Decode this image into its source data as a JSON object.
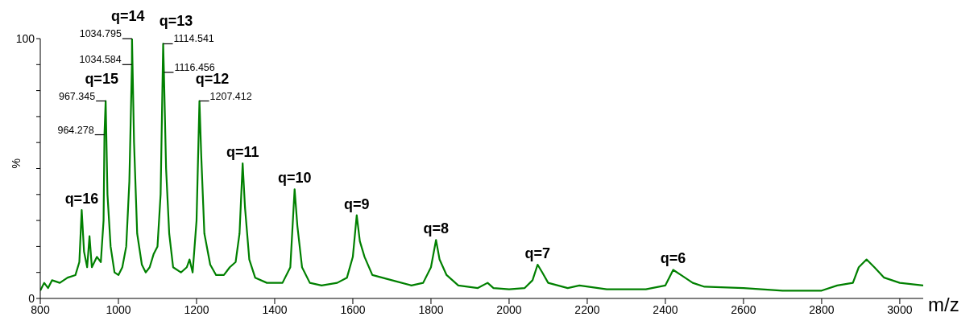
{
  "chart_data": {
    "type": "line",
    "xlabel": "m/z",
    "ylabel": "%",
    "xlim": [
      800,
      3060
    ],
    "xticks": [
      800,
      1000,
      1200,
      1400,
      1600,
      1800,
      2000,
      2200,
      2400,
      2600,
      2800,
      3000
    ],
    "ylim": [
      0,
      100
    ],
    "yticks": [
      0,
      {
        "value": 10,
        "label": null
      },
      {
        "value": 20,
        "label": null
      },
      {
        "value": 30,
        "label": null
      },
      {
        "value": 40,
        "label": null
      },
      {
        "value": 50,
        "label": null
      },
      {
        "value": 60,
        "label": null
      },
      {
        "value": 70,
        "label": null
      },
      {
        "value": 80,
        "label": null
      },
      {
        "value": 90,
        "label": null
      },
      100
    ],
    "grid": false,
    "marker": "none",
    "line_style": "solid",
    "series": [
      {
        "color": "#008000",
        "x": [
          800,
          810,
          820,
          830,
          850,
          870,
          890,
          900,
          906,
          912,
          920,
          926,
          932,
          945,
          955,
          962,
          964.278,
          967.345,
          972,
          980,
          990,
          1000,
          1010,
          1020,
          1028,
          1034.584,
          1034.795,
          1040,
          1048,
          1060,
          1070,
          1080,
          1090,
          1100,
          1108,
          1114.541,
          1116.456,
          1122,
          1130,
          1140,
          1160,
          1175,
          1182,
          1190,
          1200,
          1207.412,
          1212,
          1220,
          1235,
          1250,
          1270,
          1285,
          1300,
          1310,
          1318,
          1324,
          1335,
          1350,
          1380,
          1420,
          1440,
          1451,
          1458,
          1470,
          1490,
          1520,
          1560,
          1585,
          1600,
          1610,
          1618,
          1630,
          1650,
          1700,
          1750,
          1780,
          1800,
          1813,
          1822,
          1840,
          1870,
          1920,
          1945,
          1960,
          2000,
          2040,
          2060,
          2073,
          2085,
          2100,
          2150,
          2180,
          2250,
          2350,
          2400,
          2420,
          2440,
          2470,
          2500,
          2600,
          2700,
          2800,
          2840,
          2880,
          2895,
          2915,
          2935,
          2960,
          3000,
          3060
        ],
        "values": [
          3,
          6,
          4,
          7,
          6,
          8,
          9,
          14,
          34,
          18,
          12,
          24,
          12,
          16,
          14,
          30,
          63,
          76,
          40,
          20,
          10,
          9,
          12,
          20,
          45,
          90,
          100,
          60,
          25,
          13,
          10,
          12,
          17,
          20,
          40,
          98,
          87,
          50,
          25,
          12,
          10,
          12,
          15,
          10,
          30,
          76,
          55,
          25,
          13,
          9,
          9,
          12,
          14,
          25,
          52,
          35,
          15,
          8,
          6,
          6,
          12,
          42,
          28,
          12,
          6,
          5,
          6,
          8,
          16,
          32,
          22,
          16,
          9,
          7,
          5,
          6,
          12,
          22.5,
          15,
          9,
          5,
          4,
          6,
          4,
          3.5,
          4,
          7,
          13,
          10,
          6,
          4,
          5,
          3.5,
          3.5,
          5,
          11,
          9,
          6,
          4.5,
          4,
          3,
          3,
          5,
          6,
          12,
          15,
          12,
          8,
          6,
          5
        ]
      }
    ],
    "annotations": [
      {
        "text": "964.278",
        "x": 964.278,
        "y": 63
      },
      {
        "text": "967.345",
        "x": 967.345,
        "y": 76
      },
      {
        "text": "1034.584",
        "x": 1034.584,
        "y": 90
      },
      {
        "text": "1034.795",
        "x": 1034.795,
        "y": 100
      },
      {
        "text": "1114.541",
        "x": 1114.541,
        "y": 98
      },
      {
        "text": "1116.456",
        "x": 1116.456,
        "y": 87
      },
      {
        "text": "1207.412",
        "x": 1207.412,
        "y": 76
      },
      {
        "text": "q=16",
        "x": 906,
        "y": 34
      },
      {
        "text": "q=15",
        "x": 967.345,
        "y": 76
      },
      {
        "text": "q=14",
        "x": 1034.795,
        "y": 100
      },
      {
        "text": "q=13",
        "x": 1114.541,
        "y": 98
      },
      {
        "text": "q=12",
        "x": 1207.412,
        "y": 76
      },
      {
        "text": "q=11",
        "x": 1318,
        "y": 52
      },
      {
        "text": "q=10",
        "x": 1451,
        "y": 42
      },
      {
        "text": "q=9",
        "x": 1610,
        "y": 32
      },
      {
        "text": "q=8",
        "x": 1813,
        "y": 22.5
      },
      {
        "text": "q=7",
        "x": 2073,
        "y": 13
      },
      {
        "text": "q=6",
        "x": 2420,
        "y": 11
      }
    ]
  }
}
